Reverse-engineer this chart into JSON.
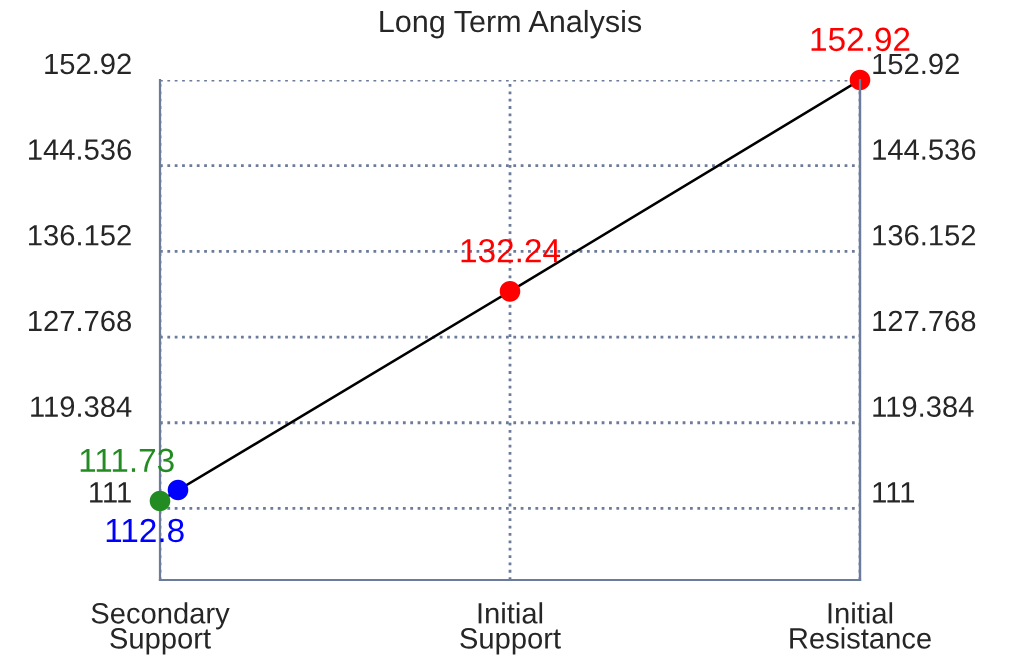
{
  "chart_data": {
    "type": "line",
    "title": "Long Term Analysis",
    "categories": [
      "Secondary\nSupport",
      "Initial\nSupport",
      "Initial\nResistance"
    ],
    "series": [
      {
        "color": "#000000",
        "colors": [
          "#228b22",
          "#ff0000",
          "#ff0000"
        ],
        "values": [
          111.73,
          132.24,
          152.92
        ]
      },
      {
        "type": "scatter",
        "color": "#0000ff",
        "values": [
          112.8,
          null,
          null
        ]
      }
    ],
    "data_labels": true,
    "marker": "circle",
    "line_style": "solid",
    "ylim": [
      104,
      152.92
    ],
    "yticks": [
      111,
      119.384,
      127.768,
      136.152,
      144.536,
      152.92
    ],
    "y2lim": [
      104,
      152.92
    ],
    "y2ticks": [
      111,
      119.384,
      127.768,
      136.152,
      144.536,
      152.92
    ],
    "grid": true,
    "legend": false
  }
}
